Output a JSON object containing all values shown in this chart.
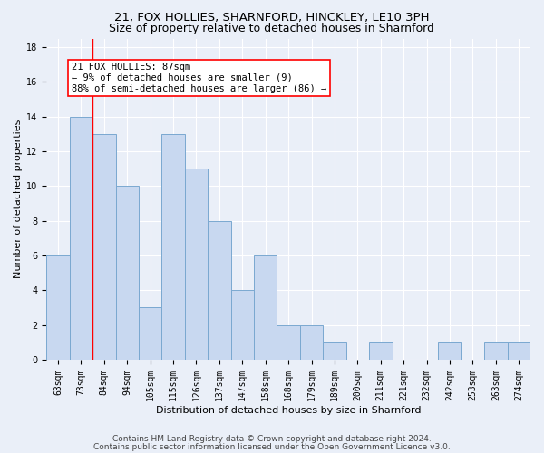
{
  "title1": "21, FOX HOLLIES, SHARNFORD, HINCKLEY, LE10 3PH",
  "title2": "Size of property relative to detached houses in Sharnford",
  "xlabel": "Distribution of detached houses by size in Sharnford",
  "ylabel": "Number of detached properties",
  "bin_labels": [
    "63sqm",
    "73sqm",
    "84sqm",
    "94sqm",
    "105sqm",
    "115sqm",
    "126sqm",
    "137sqm",
    "147sqm",
    "158sqm",
    "168sqm",
    "179sqm",
    "189sqm",
    "200sqm",
    "211sqm",
    "221sqm",
    "232sqm",
    "242sqm",
    "253sqm",
    "263sqm",
    "274sqm"
  ],
  "bin_values": [
    6,
    14,
    13,
    10,
    3,
    13,
    11,
    8,
    4,
    6,
    2,
    2,
    1,
    0,
    1,
    0,
    0,
    1,
    0,
    1,
    1
  ],
  "bar_color": "#c8d8f0",
  "bar_edge_color": "#7aa8d0",
  "bar_linewidth": 0.7,
  "vline_x_index": 1.5,
  "vline_color": "red",
  "annotation_text": "21 FOX HOLLIES: 87sqm\n← 9% of detached houses are smaller (9)\n88% of semi-detached houses are larger (86) →",
  "footer1": "Contains HM Land Registry data © Crown copyright and database right 2024.",
  "footer2": "Contains public sector information licensed under the Open Government Licence v3.0.",
  "ylim": [
    0,
    18.5
  ],
  "yticks": [
    0,
    2,
    4,
    6,
    8,
    10,
    12,
    14,
    16,
    18
  ],
  "bg_color": "#eaeff8",
  "plot_bg_color": "#eaeff8",
  "grid_color": "white",
  "title_fontsize": 9.5,
  "subtitle_fontsize": 9.0,
  "axis_label_fontsize": 8.0,
  "tick_fontsize": 7.0,
  "annotation_fontsize": 7.5,
  "footer_fontsize": 6.5
}
